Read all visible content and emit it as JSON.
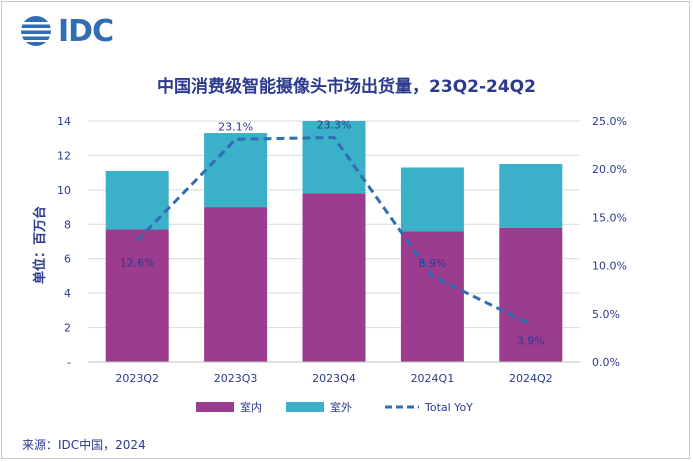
{
  "logo": {
    "text": "IDC"
  },
  "source": "来源：IDC中国，2024",
  "chart_data": {
    "type": "bar",
    "title": "中国消费级智能摄像头市场出货量，23Q2-24Q2",
    "ylabel": "单位：百万台",
    "categories": [
      "2023Q2",
      "2023Q3",
      "2023Q4",
      "2024Q1",
      "2024Q2"
    ],
    "stacked": true,
    "ylim": [
      0,
      14
    ],
    "yticks": [
      "-",
      "2",
      "4",
      "6",
      "8",
      "10",
      "12",
      "14"
    ],
    "y2lim": [
      0,
      25
    ],
    "y2ticks": [
      "0.0%",
      "5.0%",
      "10.0%",
      "15.0%",
      "20.0%",
      "25.0%"
    ],
    "series": [
      {
        "name": "室内",
        "type": "bar",
        "color": "#9b3c8f",
        "values": [
          7.7,
          9.0,
          9.8,
          7.6,
          7.8
        ]
      },
      {
        "name": "室外",
        "type": "bar",
        "color": "#3bb0c9",
        "values": [
          3.4,
          4.3,
          4.2,
          3.7,
          3.7
        ]
      },
      {
        "name": "Total YoY",
        "type": "line",
        "axis": "right",
        "color": "#2f6eb5",
        "values": [
          12.6,
          23.1,
          23.3,
          8.9,
          3.9
        ],
        "labels": [
          "12.6%",
          "23.1%",
          "23.3%",
          "8.9%",
          "3.9%"
        ]
      }
    ],
    "legend_position": "bottom"
  }
}
